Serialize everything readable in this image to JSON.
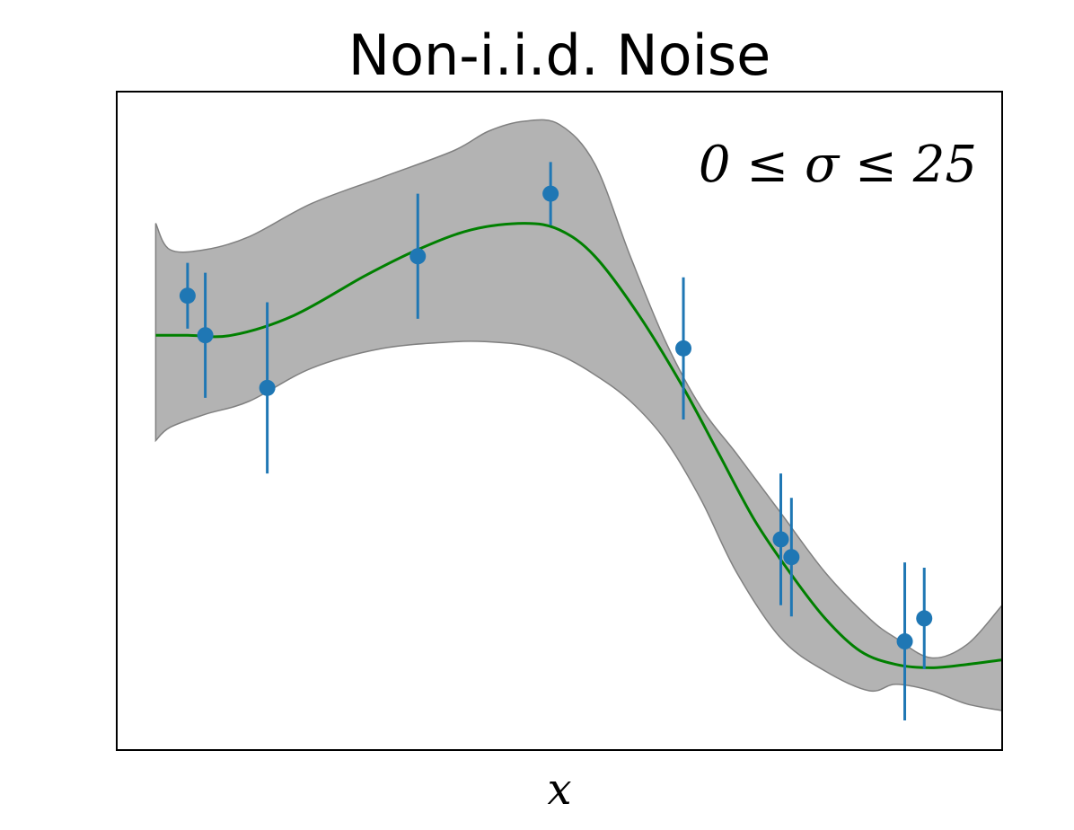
{
  "chart_data": {
    "type": "scatter",
    "title": "Non-i.i.d. Noise",
    "xlabel": "x",
    "ylabel": "",
    "annotation": "0 ≤ σ ≤ 25",
    "xlim": [
      0,
      1
    ],
    "ylim": [
      0,
      1
    ],
    "grid": false,
    "legend": "none",
    "colors": {
      "points": "#1f77b4",
      "mean": "#008000",
      "band_fill": "#b3b3b3",
      "band_edge": "#808080"
    },
    "mean_curve": {
      "x": [
        0.044,
        0.08,
        0.13,
        0.2,
        0.28,
        0.34,
        0.4,
        0.46,
        0.5,
        0.54,
        0.59,
        0.64,
        0.68,
        0.72,
        0.76,
        0.8,
        0.84,
        0.88,
        0.92,
        0.96,
        1.0
      ],
      "y": [
        0.63,
        0.63,
        0.63,
        0.66,
        0.72,
        0.76,
        0.79,
        0.8,
        0.79,
        0.75,
        0.66,
        0.55,
        0.45,
        0.35,
        0.27,
        0.2,
        0.15,
        0.13,
        0.125,
        0.13,
        0.137
      ]
    },
    "upper_band": {
      "x": [
        0.044,
        0.06,
        0.1,
        0.15,
        0.22,
        0.3,
        0.38,
        0.42,
        0.46,
        0.5,
        0.54,
        0.58,
        0.62,
        0.66,
        0.7,
        0.75,
        0.8,
        0.85,
        0.88,
        0.92,
        0.96,
        1.0
      ],
      "y": [
        0.8,
        0.76,
        0.76,
        0.78,
        0.83,
        0.87,
        0.91,
        0.94,
        0.955,
        0.95,
        0.89,
        0.75,
        0.62,
        0.52,
        0.45,
        0.36,
        0.27,
        0.2,
        0.17,
        0.14,
        0.16,
        0.22
      ]
    },
    "lower_band": {
      "x": [
        0.044,
        0.06,
        0.1,
        0.15,
        0.22,
        0.3,
        0.38,
        0.42,
        0.46,
        0.5,
        0.54,
        0.58,
        0.62,
        0.66,
        0.7,
        0.75,
        0.8,
        0.85,
        0.88,
        0.92,
        0.96,
        1.0
      ],
      "y": [
        0.47,
        0.49,
        0.51,
        0.53,
        0.58,
        0.61,
        0.62,
        0.62,
        0.615,
        0.6,
        0.57,
        0.53,
        0.47,
        0.38,
        0.27,
        0.17,
        0.12,
        0.09,
        0.1,
        0.09,
        0.07,
        0.06
      ]
    },
    "points": [
      {
        "x": 0.08,
        "y": 0.69,
        "err": 0.05
      },
      {
        "x": 0.1,
        "y": 0.63,
        "err": 0.095
      },
      {
        "x": 0.17,
        "y": 0.55,
        "err": 0.13
      },
      {
        "x": 0.34,
        "y": 0.75,
        "err": 0.095
      },
      {
        "x": 0.49,
        "y": 0.845,
        "err": 0.048
      },
      {
        "x": 0.64,
        "y": 0.61,
        "err": 0.108
      },
      {
        "x": 0.75,
        "y": 0.32,
        "err": 0.1
      },
      {
        "x": 0.762,
        "y": 0.293,
        "err": 0.09
      },
      {
        "x": 0.89,
        "y": 0.165,
        "err": 0.12
      },
      {
        "x": 0.912,
        "y": 0.2,
        "err": 0.077
      }
    ]
  }
}
